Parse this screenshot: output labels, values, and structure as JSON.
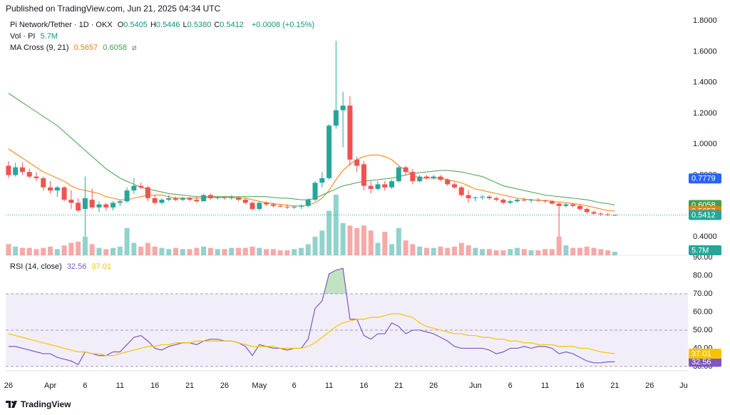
{
  "header": {
    "published": "Published on TradingView.com, Jun 21, 2025 04:34 UTC"
  },
  "footer": {
    "brand": "TradingView"
  },
  "chart_data": [
    {
      "type": "candlestick",
      "title": "Pi Network/Tether · 1D · OKX",
      "legend_keys": [
        "O",
        "H",
        "L",
        "C"
      ],
      "legend_values": [
        "0.5405",
        "0.5446",
        "0.5380",
        "0.5412"
      ],
      "change": "+0.0008 (+0.15%)",
      "up_color": "#26a69a",
      "down_color": "#ef5350",
      "open": [
        0.86,
        0.8,
        0.85,
        0.82,
        0.79,
        0.78,
        0.72,
        0.7,
        0.72,
        0.64,
        0.62,
        0.58,
        0.64,
        0.59,
        0.61,
        0.59,
        0.62,
        0.63,
        0.7,
        0.73,
        0.72,
        0.65,
        0.62,
        0.64,
        0.65,
        0.64,
        0.65,
        0.64,
        0.63,
        0.67,
        0.65,
        0.655,
        0.65,
        0.655,
        0.64,
        0.62,
        0.58,
        0.62,
        0.61,
        0.6,
        0.595,
        0.59,
        0.595,
        0.6,
        0.64,
        0.75,
        0.78,
        1.12,
        1.22,
        1.25,
        0.9,
        0.87,
        0.73,
        0.71,
        0.74,
        0.72,
        0.76,
        0.85,
        0.82,
        0.76,
        0.79,
        0.78,
        0.79,
        0.77,
        0.74,
        0.72,
        0.67,
        0.65,
        0.655,
        0.66,
        0.65,
        0.64,
        0.62,
        0.63,
        0.64,
        0.635,
        0.64,
        0.635,
        0.63,
        0.615,
        0.6,
        0.61,
        0.6,
        0.58,
        0.56,
        0.55,
        0.545,
        0.5405
      ],
      "high": [
        0.89,
        0.88,
        0.88,
        0.84,
        0.82,
        0.79,
        0.76,
        0.73,
        0.73,
        0.7,
        0.65,
        0.79,
        0.71,
        0.63,
        0.62,
        0.63,
        0.64,
        0.72,
        0.78,
        0.75,
        0.73,
        0.67,
        0.65,
        0.67,
        0.66,
        0.66,
        0.66,
        0.66,
        0.68,
        0.68,
        0.66,
        0.66,
        0.67,
        0.66,
        0.65,
        0.63,
        0.63,
        0.63,
        0.62,
        0.61,
        0.61,
        0.6,
        0.61,
        0.65,
        0.76,
        0.82,
        1.13,
        1.67,
        1.34,
        1.31,
        0.92,
        0.89,
        0.76,
        0.76,
        0.76,
        0.77,
        0.86,
        0.86,
        0.84,
        0.8,
        0.8,
        0.8,
        0.8,
        0.78,
        0.75,
        0.73,
        0.7,
        0.66,
        0.67,
        0.67,
        0.66,
        0.65,
        0.64,
        0.65,
        0.65,
        0.645,
        0.65,
        0.64,
        0.64,
        0.62,
        0.62,
        0.62,
        0.61,
        0.59,
        0.57,
        0.56,
        0.555,
        0.5446
      ],
      "low": [
        0.78,
        0.79,
        0.8,
        0.78,
        0.76,
        0.7,
        0.68,
        0.66,
        0.63,
        0.58,
        0.56,
        0.4,
        0.58,
        0.56,
        0.57,
        0.57,
        0.6,
        0.62,
        0.68,
        0.71,
        0.63,
        0.61,
        0.61,
        0.63,
        0.63,
        0.63,
        0.63,
        0.62,
        0.63,
        0.64,
        0.64,
        0.64,
        0.64,
        0.63,
        0.61,
        0.57,
        0.57,
        0.6,
        0.59,
        0.59,
        0.58,
        0.58,
        0.58,
        0.59,
        0.63,
        0.72,
        0.77,
        1.1,
        0.98,
        0.86,
        0.82,
        0.7,
        0.68,
        0.7,
        0.7,
        0.71,
        0.75,
        0.8,
        0.74,
        0.75,
        0.77,
        0.77,
        0.76,
        0.73,
        0.71,
        0.66,
        0.62,
        0.63,
        0.64,
        0.64,
        0.63,
        0.61,
        0.61,
        0.62,
        0.63,
        0.62,
        0.63,
        0.62,
        0.61,
        0.4,
        0.59,
        0.59,
        0.57,
        0.55,
        0.54,
        0.535,
        0.535,
        0.538
      ],
      "close": [
        0.8,
        0.85,
        0.82,
        0.79,
        0.78,
        0.72,
        0.7,
        0.72,
        0.64,
        0.62,
        0.57,
        0.65,
        0.59,
        0.61,
        0.59,
        0.62,
        0.63,
        0.7,
        0.73,
        0.72,
        0.65,
        0.62,
        0.64,
        0.65,
        0.64,
        0.65,
        0.64,
        0.63,
        0.67,
        0.65,
        0.655,
        0.65,
        0.655,
        0.64,
        0.62,
        0.58,
        0.62,
        0.61,
        0.6,
        0.595,
        0.59,
        0.595,
        0.6,
        0.64,
        0.75,
        0.78,
        1.12,
        1.22,
        1.25,
        0.9,
        0.86,
        0.73,
        0.71,
        0.74,
        0.72,
        0.76,
        0.85,
        0.82,
        0.76,
        0.79,
        0.78,
        0.79,
        0.77,
        0.74,
        0.72,
        0.67,
        0.65,
        0.655,
        0.66,
        0.65,
        0.64,
        0.62,
        0.63,
        0.64,
        0.635,
        0.64,
        0.635,
        0.63,
        0.615,
        0.6,
        0.61,
        0.6,
        0.58,
        0.56,
        0.55,
        0.545,
        0.5405,
        0.5412
      ],
      "close_color": "#26a69a",
      "volume": {
        "name": "Vol · PI",
        "last_label": "5.7M",
        "values": [
          18,
          14,
          12,
          12,
          10,
          12,
          14,
          10,
          16,
          20,
          22,
          30,
          18,
          12,
          10,
          12,
          14,
          44,
          20,
          14,
          20,
          14,
          12,
          10,
          12,
          10,
          10,
          12,
          14,
          12,
          10,
          10,
          12,
          12,
          12,
          14,
          12,
          10,
          10,
          8,
          8,
          10,
          12,
          18,
          30,
          40,
          72,
          98,
          52,
          48,
          44,
          48,
          40,
          20,
          38,
          18,
          44,
          24,
          18,
          14,
          12,
          12,
          14,
          12,
          14,
          20,
          16,
          12,
          10,
          10,
          8,
          8,
          10,
          12,
          10,
          8,
          8,
          10,
          10,
          30,
          16,
          12,
          12,
          14,
          12,
          10,
          8,
          5.7
        ]
      },
      "indicator": "MA Cross (9, 21)",
      "series": [
        {
          "color": "#f57c00",
          "values": [
            0.97,
            0.94,
            0.91,
            0.88,
            0.85,
            0.82,
            0.8,
            0.78,
            0.76,
            0.73,
            0.71,
            0.7,
            0.69,
            0.68,
            0.66,
            0.65,
            0.64,
            0.64,
            0.65,
            0.66,
            0.67,
            0.67,
            0.67,
            0.66,
            0.65,
            0.65,
            0.65,
            0.65,
            0.65,
            0.655,
            0.655,
            0.655,
            0.655,
            0.65,
            0.65,
            0.64,
            0.63,
            0.62,
            0.615,
            0.61,
            0.605,
            0.6,
            0.6,
            0.605,
            0.62,
            0.65,
            0.7,
            0.77,
            0.83,
            0.87,
            0.9,
            0.92,
            0.93,
            0.93,
            0.92,
            0.9,
            0.86,
            0.83,
            0.8,
            0.78,
            0.78,
            0.78,
            0.78,
            0.77,
            0.76,
            0.75,
            0.73,
            0.71,
            0.7,
            0.69,
            0.68,
            0.67,
            0.66,
            0.65,
            0.645,
            0.64,
            0.635,
            0.635,
            0.63,
            0.625,
            0.62,
            0.615,
            0.61,
            0.6,
            0.59,
            0.58,
            0.57,
            0.5657
          ]
        },
        {
          "color": "#43a047",
          "values": [
            1.33,
            1.3,
            1.27,
            1.24,
            1.21,
            1.18,
            1.15,
            1.12,
            1.08,
            1.04,
            1.0,
            0.96,
            0.92,
            0.88,
            0.84,
            0.81,
            0.78,
            0.76,
            0.74,
            0.72,
            0.71,
            0.7,
            0.69,
            0.68,
            0.675,
            0.67,
            0.665,
            0.66,
            0.66,
            0.66,
            0.66,
            0.66,
            0.66,
            0.66,
            0.66,
            0.66,
            0.66,
            0.66,
            0.655,
            0.65,
            0.65,
            0.645,
            0.64,
            0.64,
            0.65,
            0.67,
            0.69,
            0.71,
            0.73,
            0.74,
            0.75,
            0.76,
            0.765,
            0.77,
            0.775,
            0.78,
            0.79,
            0.8,
            0.81,
            0.815,
            0.82,
            0.825,
            0.83,
            0.83,
            0.825,
            0.82,
            0.81,
            0.8,
            0.79,
            0.77,
            0.75,
            0.73,
            0.72,
            0.71,
            0.7,
            0.69,
            0.68,
            0.67,
            0.665,
            0.66,
            0.655,
            0.65,
            0.645,
            0.64,
            0.63,
            0.62,
            0.615,
            0.6058
          ]
        }
      ],
      "price_line": {
        "value": 0.7779,
        "color": "#2962ff"
      },
      "xlim": [
        -0.4,
        97.5
      ],
      "ylim": [
        0.28,
        1.842
      ],
      "yticks": [
        {
          "value": 0.4,
          "label": "0.4000"
        },
        {
          "value": 0.6,
          "label": "0.6000"
        },
        {
          "value": 0.8,
          "label": "0.8000"
        },
        {
          "value": 1.0,
          "label": "1.0000"
        },
        {
          "value": 1.2,
          "label": "1.2000"
        },
        {
          "value": 1.4,
          "label": "1.4000"
        },
        {
          "value": 1.6,
          "label": "1.6000"
        },
        {
          "value": 1.8,
          "label": "1.8000"
        }
      ],
      "xticks": [
        {
          "value": 0,
          "label": "26"
        },
        {
          "value": 6,
          "label": "Apr"
        },
        {
          "value": 11,
          "label": "6"
        },
        {
          "value": 16,
          "label": "11"
        },
        {
          "value": 21,
          "label": "16"
        },
        {
          "value": 26,
          "label": "21"
        },
        {
          "value": 31,
          "label": "26"
        },
        {
          "value": 36,
          "label": "May"
        },
        {
          "value": 41,
          "label": "6"
        },
        {
          "value": 46,
          "label": "11"
        },
        {
          "value": 51,
          "label": "16"
        },
        {
          "value": 56,
          "label": "21"
        },
        {
          "value": 61,
          "label": "26"
        },
        {
          "value": 67,
          "label": "Jun"
        },
        {
          "value": 72,
          "label": "6"
        },
        {
          "value": 77,
          "label": "11"
        },
        {
          "value": 82,
          "label": "16"
        },
        {
          "value": 87,
          "label": "21"
        },
        {
          "value": 92,
          "label": "26"
        },
        {
          "value": 97,
          "label": "Jul"
        }
      ]
    },
    {
      "type": "line",
      "title": "RSI (14, close)",
      "series": [
        {
          "color": "#7e57c2",
          "values": [
            41,
            41,
            40,
            39,
            38,
            37,
            37,
            35,
            34,
            33,
            31,
            38,
            37,
            36,
            36,
            38,
            38,
            42,
            46,
            47,
            44,
            40,
            39,
            41,
            42,
            43,
            43,
            42,
            44,
            45,
            45,
            44,
            44,
            43,
            41,
            36,
            42,
            41,
            40,
            40,
            39,
            40,
            40,
            45,
            62,
            66,
            81,
            83,
            84,
            56,
            56,
            47,
            45,
            48,
            48,
            54,
            52,
            48,
            50,
            50,
            49,
            48,
            46,
            44,
            41,
            40,
            40,
            40,
            40,
            39,
            37,
            38,
            40,
            40,
            41,
            40,
            41,
            41,
            40,
            37,
            38,
            37,
            35,
            33,
            32,
            32,
            32.5,
            32.56
          ]
        },
        {
          "color": "#f5c400",
          "values": [
            48,
            47,
            46,
            45,
            44,
            43,
            42,
            41,
            40,
            39,
            38,
            38,
            37,
            37,
            36,
            36,
            37,
            38,
            39,
            40,
            41,
            41,
            42,
            42,
            43,
            43,
            43,
            44,
            44,
            44,
            44,
            44,
            44,
            43,
            42,
            41,
            41,
            41,
            41,
            40,
            40,
            40,
            40,
            41,
            43,
            46,
            49,
            52,
            54,
            55,
            56,
            56,
            57,
            57,
            58,
            59,
            59,
            58,
            57,
            54,
            52,
            51,
            50,
            49,
            48,
            48,
            47,
            47,
            46,
            46,
            45,
            45,
            44,
            44,
            43,
            43,
            42,
            42,
            42,
            41,
            41,
            41,
            40,
            40,
            39,
            38,
            37.5,
            37.01
          ]
        }
      ],
      "bands": {
        "upper": 70,
        "middle": 50,
        "lower": 30
      },
      "band_color": "#7e57c2",
      "overbought_color": "#4caf50",
      "ylim": [
        27.6,
        91.2
      ],
      "yticks": [
        {
          "value": 30,
          "label": "30.00"
        },
        {
          "value": 40,
          "label": "40.00"
        },
        {
          "value": 50,
          "label": "50.00"
        },
        {
          "value": 60,
          "label": "60.00"
        },
        {
          "value": 70,
          "label": "70.00"
        },
        {
          "value": 80,
          "label": "80.00"
        },
        {
          "value": 90,
          "label": "90.00"
        }
      ]
    }
  ]
}
